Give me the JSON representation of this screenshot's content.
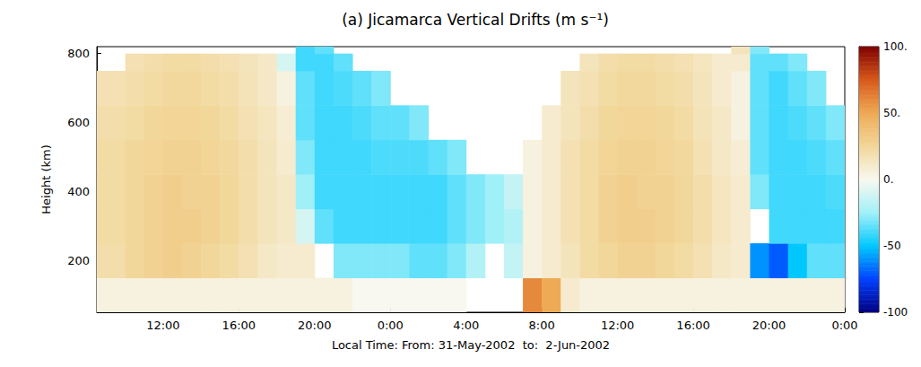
{
  "chart_data": {
    "type": "heatmap",
    "title": "(a) Jicamarca Vertical Drifts (m s⁻¹)",
    "x_label": "Local Time: From: 31-May-2002  to:  2-Jun-2002",
    "y_label": "Height (km)",
    "xlim": [
      8.5,
      48
    ],
    "xticks": [
      {
        "value": 12,
        "label": "12:00"
      },
      {
        "value": 16,
        "label": "16:00"
      },
      {
        "value": 20,
        "label": "20:00"
      },
      {
        "value": 24,
        "label": "0:00"
      },
      {
        "value": 28,
        "label": "4:00"
      },
      {
        "value": 32,
        "label": "8:00"
      },
      {
        "value": 36,
        "label": "12:00"
      },
      {
        "value": 40,
        "label": "16:00"
      },
      {
        "value": 44,
        "label": "20:00"
      },
      {
        "value": 48,
        "label": "0:00"
      }
    ],
    "ylim": [
      50,
      820
    ],
    "yticks": [
      200,
      400,
      600,
      800
    ],
    "cells": {
      "x_edges": [
        8.5,
        10,
        11,
        12,
        13,
        14,
        15,
        16,
        17,
        18,
        19,
        20,
        21,
        22,
        23,
        24,
        25,
        26,
        27,
        28,
        29,
        30,
        31,
        32,
        33,
        34,
        35,
        36,
        37,
        38,
        39,
        40,
        41,
        42,
        43,
        44,
        45,
        46,
        47,
        48
      ],
      "y_edges": [
        50,
        150,
        250,
        350,
        450,
        550,
        650,
        750,
        800,
        880
      ],
      "values": [
        [
          5,
          20,
          22,
          22,
          22,
          20,
          18,
          null,
          null
        ],
        [
          5,
          25,
          25,
          25,
          25,
          22,
          20,
          18,
          null
        ],
        [
          5,
          28,
          28,
          28,
          26,
          25,
          22,
          20,
          null
        ],
        [
          5,
          30,
          30,
          30,
          28,
          26,
          24,
          22,
          null
        ],
        [
          5,
          28,
          30,
          28,
          28,
          26,
          24,
          22,
          null
        ],
        [
          5,
          25,
          28,
          28,
          26,
          25,
          22,
          20,
          null
        ],
        [
          5,
          22,
          25,
          25,
          24,
          22,
          20,
          18,
          null
        ],
        [
          5,
          18,
          20,
          20,
          20,
          18,
          16,
          15,
          null
        ],
        [
          5,
          12,
          15,
          15,
          15,
          14,
          12,
          12,
          null
        ],
        [
          5,
          10,
          12,
          12,
          10,
          8,
          5,
          -10,
          null
        ],
        [
          5,
          10,
          -10,
          -25,
          -30,
          -35,
          -35,
          -40,
          -40
        ],
        [
          5,
          null,
          -35,
          -40,
          -40,
          -40,
          -40,
          -40,
          -35
        ],
        [
          5,
          -30,
          -40,
          -40,
          -40,
          -40,
          -38,
          -35,
          null
        ],
        [
          0,
          -30,
          -40,
          -40,
          -40,
          -38,
          -35,
          null,
          null
        ],
        [
          0,
          -30,
          -40,
          -40,
          -38,
          -35,
          -30,
          null,
          null
        ],
        [
          0,
          -30,
          -40,
          -40,
          -38,
          -35,
          null,
          null,
          null
        ],
        [
          0,
          -35,
          -40,
          -40,
          -38,
          -30,
          null,
          null,
          null
        ],
        [
          0,
          -35,
          -40,
          -40,
          -35,
          null,
          null,
          null,
          null
        ],
        [
          0,
          -30,
          -35,
          -35,
          -30,
          null,
          null,
          null,
          null
        ],
        [
          null,
          -20,
          -30,
          -30,
          null,
          null,
          null,
          null,
          null
        ],
        [
          null,
          null,
          -25,
          -25,
          null,
          null,
          null,
          null,
          null
        ],
        [
          null,
          -15,
          -20,
          -15,
          null,
          null,
          null,
          null,
          null
        ],
        [
          60,
          5,
          5,
          5,
          5,
          null,
          null,
          null,
          null
        ],
        [
          50,
          10,
          10,
          10,
          10,
          10,
          null,
          null,
          null
        ],
        [
          10,
          15,
          18,
          18,
          18,
          15,
          15,
          null,
          null
        ],
        [
          5,
          22,
          22,
          22,
          22,
          20,
          18,
          15,
          null
        ],
        [
          5,
          25,
          28,
          28,
          26,
          25,
          22,
          20,
          null
        ],
        [
          5,
          28,
          30,
          30,
          28,
          26,
          24,
          22,
          null
        ],
        [
          5,
          28,
          30,
          28,
          28,
          26,
          24,
          22,
          null
        ],
        [
          5,
          25,
          28,
          28,
          26,
          25,
          22,
          20,
          null
        ],
        [
          5,
          22,
          25,
          25,
          24,
          22,
          20,
          18,
          null
        ],
        [
          5,
          18,
          20,
          20,
          18,
          16,
          15,
          14,
          null
        ],
        [
          5,
          12,
          14,
          14,
          12,
          12,
          10,
          10,
          null
        ],
        [
          5,
          10,
          10,
          10,
          8,
          5,
          5,
          10,
          15
        ],
        [
          5,
          -60,
          null,
          -30,
          -35,
          -35,
          -35,
          -35,
          -30
        ],
        [
          5,
          -70,
          -40,
          -40,
          -40,
          -40,
          -40,
          -35,
          null
        ],
        [
          5,
          -50,
          -40,
          -40,
          -40,
          -38,
          -35,
          -30,
          null
        ],
        [
          5,
          -35,
          -40,
          -40,
          -38,
          -35,
          -30,
          null,
          null
        ],
        [
          5,
          -35,
          -40,
          -38,
          -35,
          -30,
          null,
          null,
          null
        ]
      ]
    },
    "colorbar": {
      "range": [
        -100,
        100
      ],
      "ticks": [
        {
          "value": 100,
          "label": "100."
        },
        {
          "value": 50,
          "label": "50."
        },
        {
          "value": 0,
          "label": "0."
        },
        {
          "value": -50,
          "label": "-50"
        },
        {
          "value": -100,
          "label": "-100"
        }
      ]
    }
  }
}
